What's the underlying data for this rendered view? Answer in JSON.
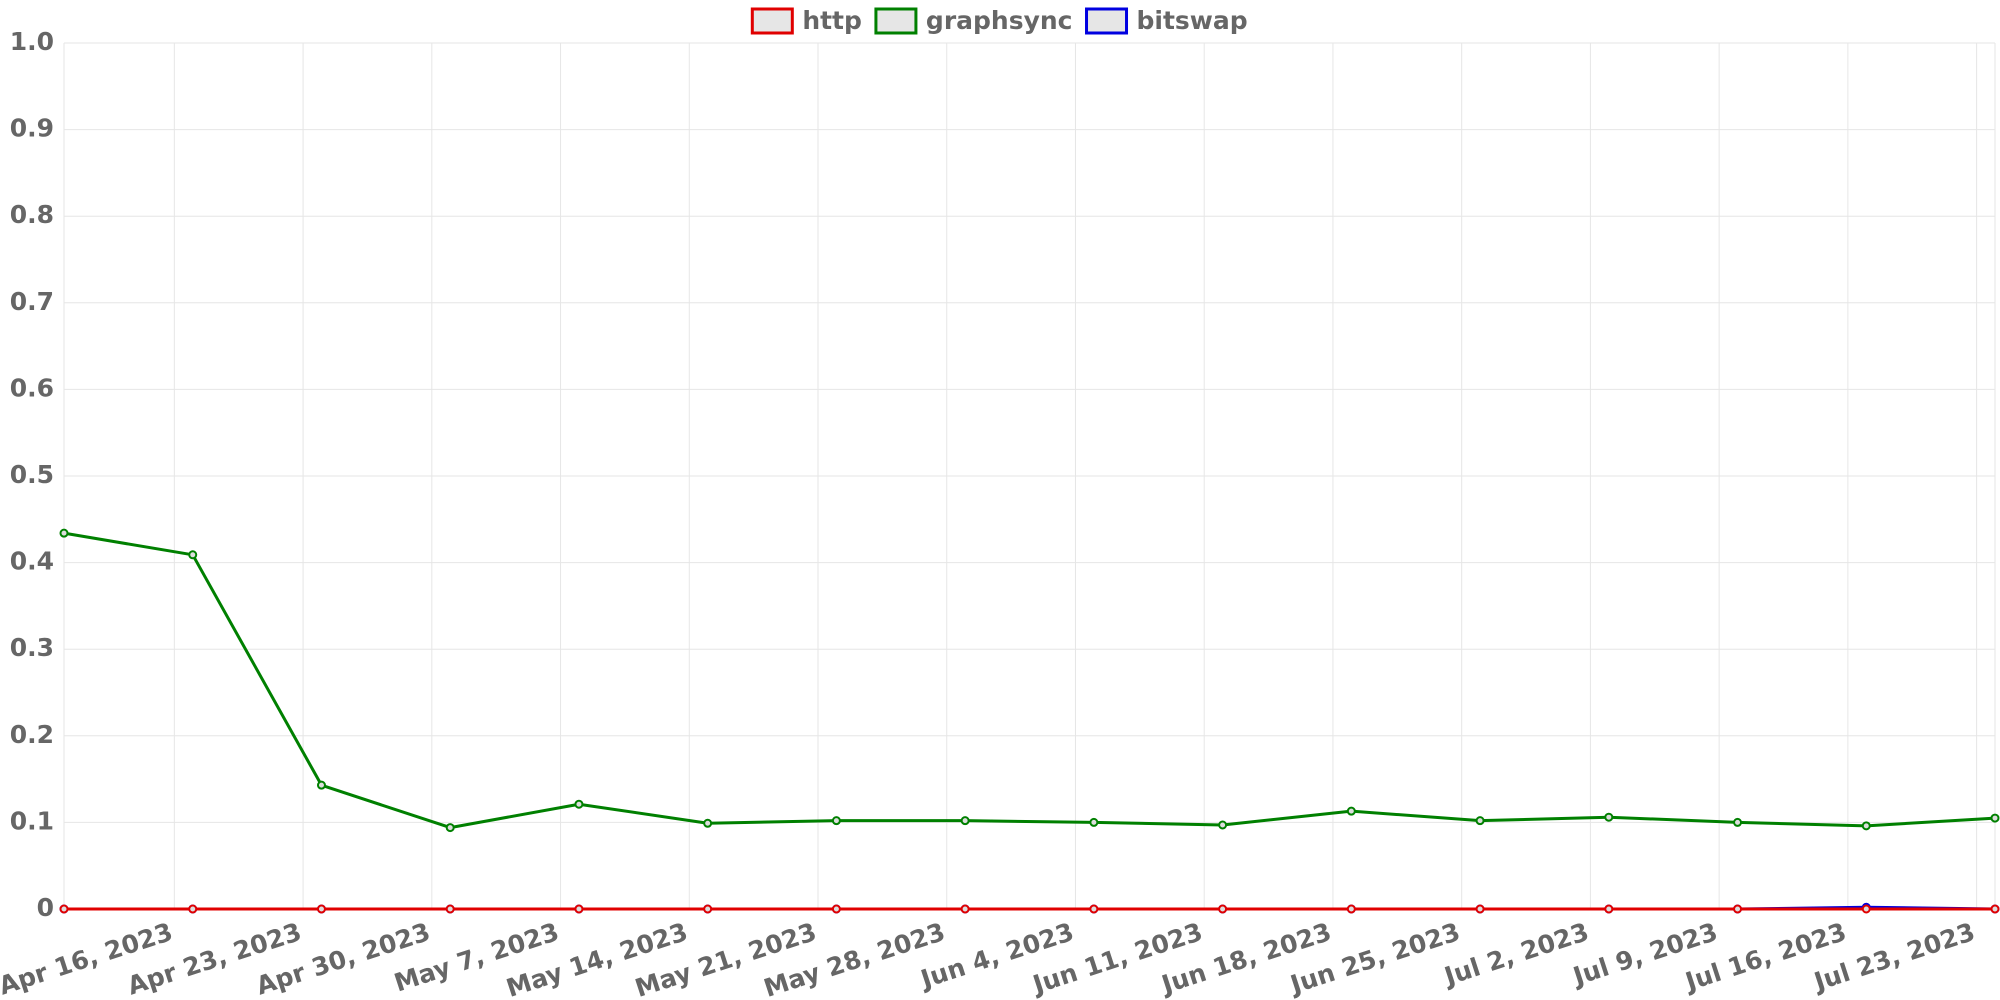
{
  "chart_data": {
    "type": "line",
    "x": [
      "2023-04-10",
      "2023-04-17",
      "2023-04-24",
      "2023-05-01",
      "2023-05-08",
      "2023-05-15",
      "2023-05-22",
      "2023-05-29",
      "2023-06-05",
      "2023-06-12",
      "2023-06-19",
      "2023-06-26",
      "2023-07-03",
      "2023-07-10",
      "2023-07-17",
      "2023-07-24"
    ],
    "xlim": [
      "2023-04-10",
      "2023-07-24"
    ],
    "xticks": [
      {
        "value": "2023-04-16",
        "label": "Apr 16, 2023"
      },
      {
        "value": "2023-04-23",
        "label": "Apr 23, 2023"
      },
      {
        "value": "2023-04-30",
        "label": "Apr 30, 2023"
      },
      {
        "value": "2023-05-07",
        "label": "May 7, 2023"
      },
      {
        "value": "2023-05-14",
        "label": "May 14, 2023"
      },
      {
        "value": "2023-05-21",
        "label": "May 21, 2023"
      },
      {
        "value": "2023-05-28",
        "label": "May 28, 2023"
      },
      {
        "value": "2023-06-04",
        "label": "Jun 4, 2023"
      },
      {
        "value": "2023-06-11",
        "label": "Jun 11, 2023"
      },
      {
        "value": "2023-06-18",
        "label": "Jun 18, 2023"
      },
      {
        "value": "2023-06-25",
        "label": "Jun 25, 2023"
      },
      {
        "value": "2023-07-02",
        "label": "Jul 2, 2023"
      },
      {
        "value": "2023-07-09",
        "label": "Jul 9, 2023"
      },
      {
        "value": "2023-07-16",
        "label": "Jul 16, 2023"
      },
      {
        "value": "2023-07-23",
        "label": "Jul 23, 2023"
      }
    ],
    "ylim": [
      0,
      1
    ],
    "yticks": [
      0,
      0.1,
      0.2,
      0.3,
      0.4,
      0.5,
      0.6,
      0.7,
      0.8,
      0.9,
      {
        "value": 1,
        "label": "1.0"
      }
    ],
    "grid": true,
    "legend": "top",
    "series": [
      {
        "name": "http",
        "color": "#e00000",
        "values": [
          0,
          0,
          0,
          0,
          0,
          0,
          0,
          0,
          0,
          0,
          0,
          0,
          0,
          0,
          0,
          0
        ]
      },
      {
        "name": "graphsync",
        "color": "#008000",
        "values": [
          0.434,
          0.409,
          0.143,
          0.094,
          0.121,
          0.099,
          0.102,
          0.102,
          0.1,
          0.097,
          0.113,
          0.102,
          0.106,
          0.1,
          0.096,
          0.105
        ]
      },
      {
        "name": "bitswap",
        "color": "#0000e0",
        "values": [
          0,
          0,
          0,
          0,
          0,
          0,
          0,
          0,
          0,
          0,
          0,
          0,
          0,
          0,
          0.002,
          0
        ]
      }
    ]
  }
}
